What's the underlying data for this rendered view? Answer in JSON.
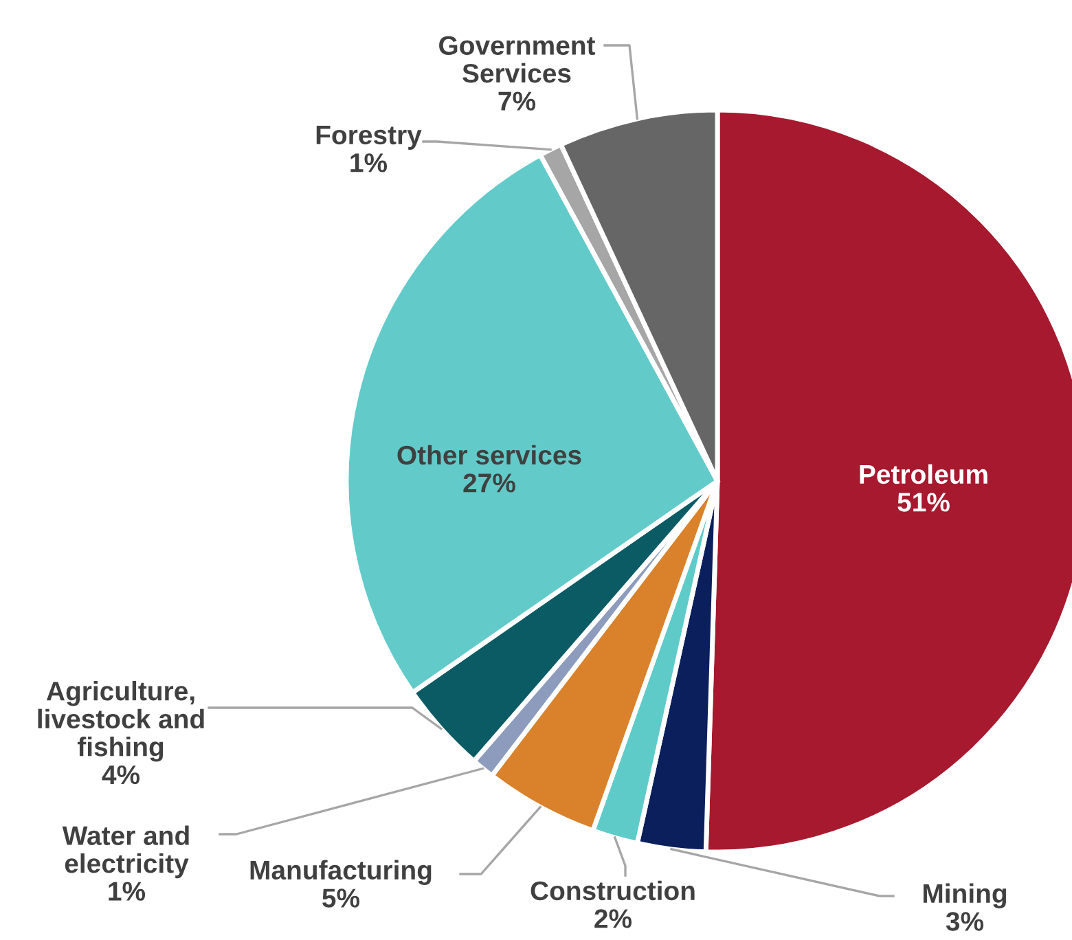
{
  "chart_data": {
    "type": "pie",
    "categories": [
      "Petroleum",
      "Mining",
      "Construction",
      "Manufacturing",
      "Water and\nelectricity",
      "Agriculture,\nlivestock and\nfishing",
      "Other services",
      "Forestry",
      "Government\nServices"
    ],
    "values": [
      51,
      3,
      2,
      5,
      1,
      4,
      27,
      1,
      7
    ],
    "value_labels": [
      "51%",
      "3%",
      "2%",
      "5%",
      "1%",
      "4%",
      "27%",
      "1%",
      "7%"
    ],
    "colors": [
      "#a6192e",
      "#0a1f5c",
      "#5ecbc8",
      "#d9822b",
      "#8d9bbd",
      "#0b5b65",
      "#62cbc9",
      "#a6a6a6",
      "#666666"
    ],
    "legend": false
  }
}
